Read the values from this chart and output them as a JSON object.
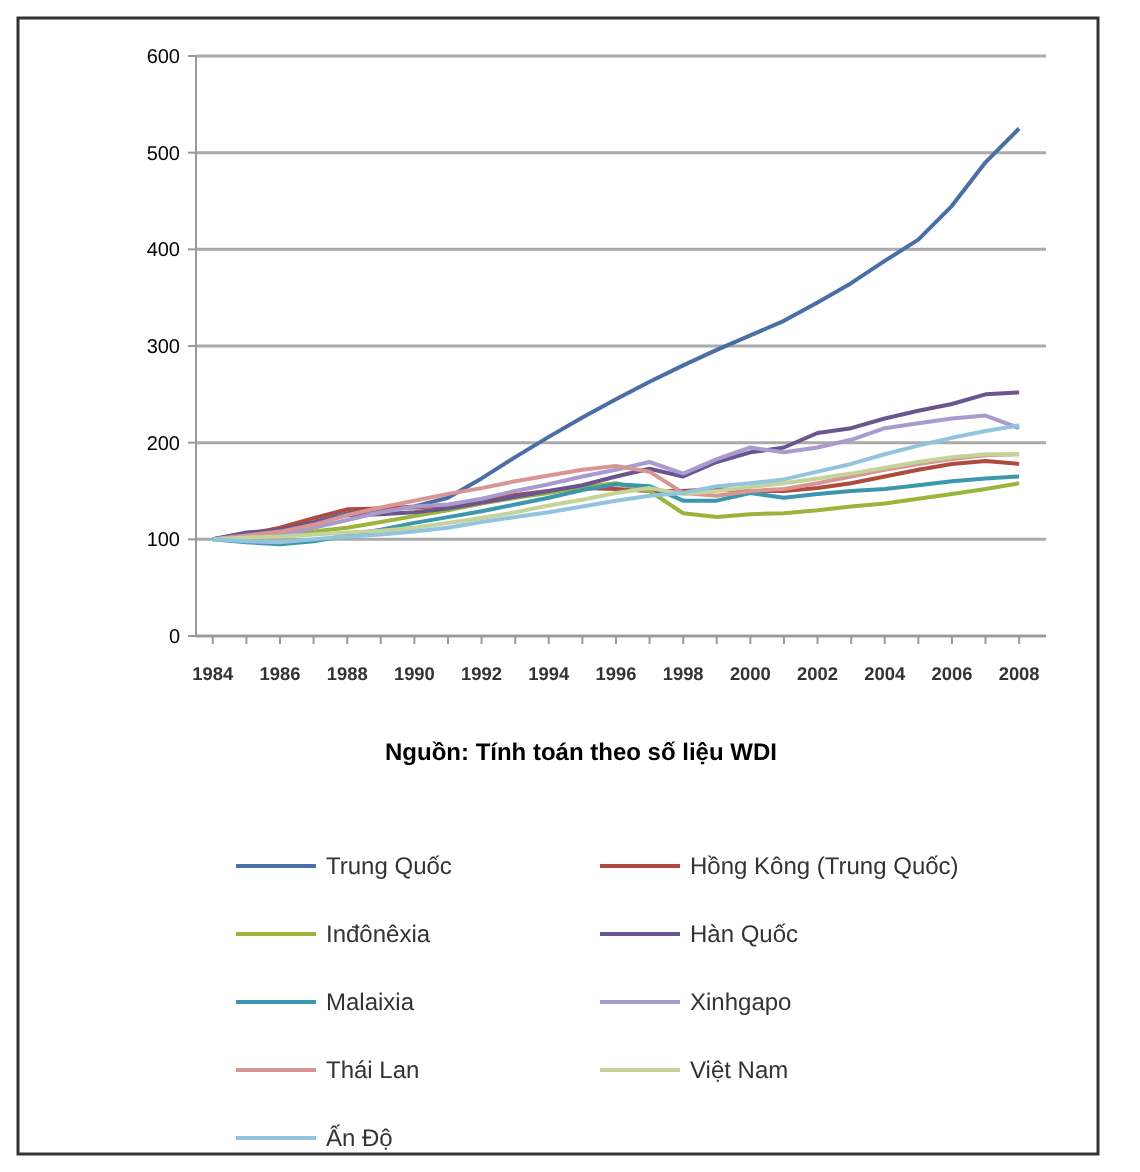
{
  "chart_data": {
    "type": "line",
    "x": [
      1984,
      1985,
      1986,
      1987,
      1988,
      1989,
      1990,
      1991,
      1992,
      1993,
      1994,
      1995,
      1996,
      1997,
      1998,
      1999,
      2000,
      2001,
      2002,
      2003,
      2004,
      2005,
      2006,
      2007,
      2008
    ],
    "series": [
      {
        "name": "Trung Quốc",
        "color": "#4a6fa5",
        "values": [
          100,
          107,
          110,
          118,
          127,
          131,
          134,
          143,
          163,
          185,
          206,
          226,
          245,
          263,
          280,
          296,
          311,
          326,
          345,
          365,
          388,
          410,
          445,
          490,
          525
        ]
      },
      {
        "name": "Hồng Kông (Trung Quốc)",
        "color": "#b04a3e",
        "values": [
          100,
          105,
          112,
          122,
          131,
          132,
          133,
          135,
          141,
          146,
          150,
          153,
          152,
          150,
          150,
          152,
          150,
          150,
          153,
          158,
          165,
          172,
          178,
          181,
          178
        ]
      },
      {
        "name": "Inđônêxia",
        "color": "#9bb43c",
        "values": [
          100,
          103,
          104,
          108,
          112,
          118,
          124,
          130,
          137,
          143,
          148,
          154,
          158,
          150,
          127,
          123,
          126,
          127,
          130,
          134,
          137,
          142,
          147,
          152,
          158
        ]
      },
      {
        "name": "Hàn Quốc",
        "color": "#6a558f",
        "values": [
          100,
          106,
          110,
          117,
          125,
          126,
          128,
          132,
          138,
          144,
          150,
          156,
          165,
          173,
          165,
          180,
          190,
          195,
          210,
          215,
          225,
          233,
          240,
          250,
          252
        ]
      },
      {
        "name": "Malaixia",
        "color": "#3a97ad",
        "values": [
          100,
          97,
          95,
          98,
          104,
          110,
          117,
          123,
          129,
          136,
          143,
          151,
          157,
          155,
          140,
          140,
          148,
          143,
          147,
          150,
          152,
          156,
          160,
          163,
          165
        ]
      },
      {
        "name": "Xinhgapo",
        "color": "#a99bcf",
        "values": [
          100,
          101,
          104,
          112,
          120,
          128,
          134,
          136,
          142,
          150,
          157,
          165,
          172,
          180,
          168,
          183,
          195,
          190,
          195,
          203,
          215,
          220,
          225,
          228,
          215
        ]
      },
      {
        "name": "Thái Lan",
        "color": "#d99594",
        "values": [
          100,
          104,
          108,
          115,
          125,
          133,
          140,
          147,
          153,
          160,
          166,
          172,
          176,
          170,
          148,
          145,
          150,
          152,
          158,
          165,
          172,
          178,
          183,
          187,
          188
        ]
      },
      {
        "name": "Việt Nam",
        "color": "#c4d39a",
        "values": [
          100,
          102,
          103,
          105,
          107,
          109,
          112,
          117,
          122,
          128,
          135,
          141,
          148,
          153,
          147,
          150,
          154,
          158,
          163,
          168,
          174,
          180,
          185,
          188,
          188
        ]
      },
      {
        "name": "Ấn Độ",
        "color": "#93c4de",
        "values": [
          100,
          98,
          97,
          100,
          103,
          105,
          108,
          112,
          118,
          123,
          128,
          134,
          140,
          145,
          148,
          155,
          158,
          162,
          170,
          178,
          188,
          197,
          205,
          212,
          218
        ]
      }
    ],
    "xlim": [
      1983.5,
      2008.8
    ],
    "xticks": [
      1984,
      {
        "value": 1985,
        "label": null
      },
      1986,
      {
        "value": 1987,
        "label": null
      },
      1988,
      {
        "value": 1989,
        "label": null
      },
      1990,
      {
        "value": 1991,
        "label": null
      },
      1992,
      {
        "value": 1993,
        "label": null
      },
      1994,
      {
        "value": 1995,
        "label": null
      },
      1996,
      {
        "value": 1997,
        "label": null
      },
      1998,
      {
        "value": 1999,
        "label": null
      },
      2000,
      {
        "value": 2001,
        "label": null
      },
      2002,
      {
        "value": 2003,
        "label": null
      },
      2004,
      {
        "value": 2005,
        "label": null
      },
      2006,
      {
        "value": 2007,
        "label": null
      },
      2008
    ],
    "ylim": [
      0,
      600
    ],
    "yticks": [
      0,
      100,
      200,
      300,
      400,
      500,
      600
    ],
    "grid": "y",
    "legend": "bottom",
    "annotations": [
      "Nguồn: Tính toán theo số liệu WDI"
    ]
  }
}
